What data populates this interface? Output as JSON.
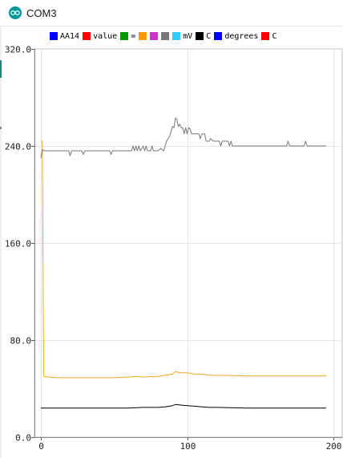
{
  "window": {
    "title": "COM3"
  },
  "legend": [
    {
      "label": "AA14",
      "color": "#0000ff"
    },
    {
      "label": "value",
      "color": "#ff0000"
    },
    {
      "label": "=",
      "color": "#009900"
    },
    {
      "label": "",
      "color": "#ff9900"
    },
    {
      "label": "",
      "color": "#cc33cc"
    },
    {
      "label": "",
      "color": "#777777"
    },
    {
      "label": "mV",
      "color": "#33ccff"
    },
    {
      "label": "C",
      "color": "#000000"
    },
    {
      "label": "degrees",
      "color": "#0000ff"
    },
    {
      "label": "C",
      "color": "#ff0000"
    }
  ],
  "chart_data": {
    "type": "line",
    "xlim": [
      0,
      200
    ],
    "ylim": [
      0,
      320
    ],
    "x_ticks": [
      0,
      100,
      200
    ],
    "x_tick_labels": [
      "0",
      "100",
      "200"
    ],
    "y_ticks": [
      0,
      80,
      160,
      240,
      320
    ],
    "y_tick_labels": [
      "0.0",
      "80.0",
      "160.0",
      "240.0",
      "320.0"
    ],
    "grid": true,
    "series": [
      {
        "color": "#f5a623",
        "points": [
          [
            0,
            244
          ],
          [
            1,
            244
          ],
          [
            2,
            50
          ],
          [
            10,
            49
          ],
          [
            30,
            49
          ],
          [
            50,
            49
          ],
          [
            60,
            49.5
          ],
          [
            65,
            50
          ],
          [
            70,
            49.5
          ],
          [
            75,
            50
          ],
          [
            80,
            50
          ],
          [
            85,
            51
          ],
          [
            90,
            52
          ],
          [
            92,
            54
          ],
          [
            95,
            53
          ],
          [
            100,
            53
          ],
          [
            105,
            52
          ],
          [
            110,
            52
          ],
          [
            115,
            51
          ],
          [
            120,
            51
          ],
          [
            140,
            50.5
          ],
          [
            160,
            50.5
          ],
          [
            180,
            50.5
          ],
          [
            195,
            50.5
          ]
        ]
      },
      {
        "color": "#777777",
        "points": [
          [
            0,
            230
          ],
          [
            1,
            237
          ],
          [
            2,
            236
          ],
          [
            10,
            236
          ],
          [
            19,
            236
          ],
          [
            20,
            232
          ],
          [
            21,
            236
          ],
          [
            28,
            236
          ],
          [
            29,
            233
          ],
          [
            30,
            236
          ],
          [
            47,
            236
          ],
          [
            48,
            233
          ],
          [
            49,
            236
          ],
          [
            62,
            236
          ],
          [
            63,
            240
          ],
          [
            64,
            236
          ],
          [
            65,
            240
          ],
          [
            66,
            236
          ],
          [
            67,
            240
          ],
          [
            68,
            236
          ],
          [
            70,
            240
          ],
          [
            71,
            236
          ],
          [
            72,
            240
          ],
          [
            73,
            236
          ],
          [
            75,
            236
          ],
          [
            76,
            240
          ],
          [
            77,
            236
          ],
          [
            80,
            236
          ],
          [
            82,
            238
          ],
          [
            84,
            236
          ],
          [
            85,
            240
          ],
          [
            86,
            244
          ],
          [
            88,
            248
          ],
          [
            89,
            252
          ],
          [
            90,
            256
          ],
          [
            91,
            255
          ],
          [
            92,
            263
          ],
          [
            93,
            262
          ],
          [
            94,
            256
          ],
          [
            95,
            258
          ],
          [
            96,
            255
          ],
          [
            97,
            255
          ],
          [
            98,
            250
          ],
          [
            99,
            255
          ],
          [
            100,
            250
          ],
          [
            101,
            255
          ],
          [
            102,
            254
          ],
          [
            103,
            250
          ],
          [
            105,
            250
          ],
          [
            108,
            250
          ],
          [
            109,
            246
          ],
          [
            110,
            250
          ],
          [
            112,
            250
          ],
          [
            113,
            244
          ],
          [
            114,
            244
          ],
          [
            115,
            244
          ],
          [
            116,
            246
          ],
          [
            118,
            244
          ],
          [
            120,
            244
          ],
          [
            122,
            244
          ],
          [
            123,
            240
          ],
          [
            124,
            244
          ],
          [
            128,
            244
          ],
          [
            129,
            240
          ],
          [
            130,
            244
          ],
          [
            131,
            240
          ],
          [
            133,
            240
          ],
          [
            134,
            240
          ],
          [
            140,
            240
          ],
          [
            150,
            240
          ],
          [
            160,
            240
          ],
          [
            168,
            240
          ],
          [
            169,
            244
          ],
          [
            170,
            240
          ],
          [
            180,
            240
          ],
          [
            181,
            244
          ],
          [
            182,
            240
          ],
          [
            190,
            240
          ],
          [
            195,
            240
          ]
        ]
      },
      {
        "color": "#000000",
        "points": [
          [
            0,
            24
          ],
          [
            30,
            24
          ],
          [
            60,
            24
          ],
          [
            70,
            24.5
          ],
          [
            80,
            24.5
          ],
          [
            85,
            25
          ],
          [
            90,
            26
          ],
          [
            92,
            27
          ],
          [
            95,
            26.5
          ],
          [
            100,
            26
          ],
          [
            105,
            25.5
          ],
          [
            110,
            25
          ],
          [
            115,
            24.5
          ],
          [
            120,
            24.5
          ],
          [
            140,
            24
          ],
          [
            160,
            24
          ],
          [
            180,
            24
          ],
          [
            195,
            24
          ]
        ]
      }
    ]
  }
}
